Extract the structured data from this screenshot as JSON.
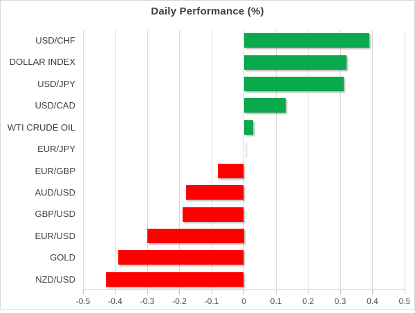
{
  "chart_data": {
    "type": "bar",
    "orientation": "horizontal",
    "title": "Daily Performance (%)",
    "categories": [
      "USD/CHF",
      "DOLLAR INDEX",
      "USD/JPY",
      "USD/CAD",
      "WTI CRUDE OIL",
      "EUR/JPY",
      "EUR/GBP",
      "AUD/USD",
      "GBP/USD",
      "EUR/USD",
      "GOLD",
      "NZD/USD"
    ],
    "values": [
      0.39,
      0.32,
      0.31,
      0.13,
      0.03,
      0.0,
      -0.08,
      -0.18,
      -0.19,
      -0.3,
      -0.39,
      -0.43
    ],
    "xlim": [
      -0.5,
      0.5
    ],
    "x_ticks": [
      -0.5,
      -0.4,
      -0.3,
      -0.2,
      -0.1,
      0,
      0.1,
      0.2,
      0.3,
      0.4,
      0.5
    ],
    "x_tick_labels": [
      "-0.5",
      "-0.4",
      "-0.3",
      "-0.2",
      "-0.1",
      "0",
      "0.1",
      "0.2",
      "0.3",
      "0.4",
      "0.5"
    ],
    "grid": true,
    "legend": false,
    "positive_color": "#0aa94d",
    "negative_color": "#ff0000",
    "gridline_color": "#d9d9d9",
    "axis_line_color": "#c8c8c8",
    "tick_color": "#bfbfbf",
    "title_color": "#3f3f46",
    "label_color": "#404040",
    "tick_label_color": "#4d4d4d"
  }
}
